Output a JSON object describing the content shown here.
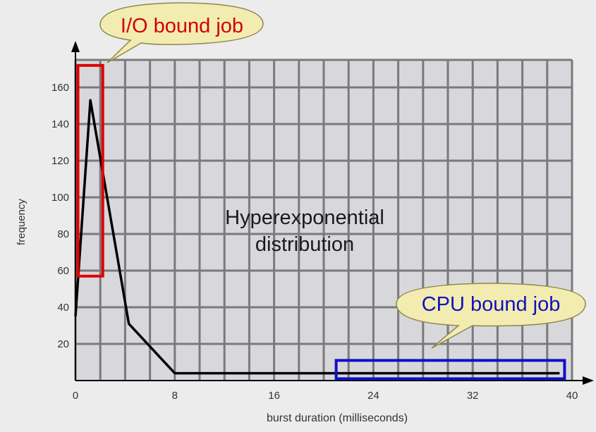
{
  "chart_data": {
    "type": "line",
    "xlabel": "burst duration (milliseconds)",
    "ylabel": "frequency",
    "xlim": [
      0,
      40
    ],
    "ylim": [
      0,
      175
    ],
    "x_ticks": [
      0,
      8,
      16,
      24,
      32,
      40
    ],
    "y_ticks": [
      20,
      40,
      60,
      80,
      100,
      120,
      140,
      160
    ],
    "grid_x": [
      0,
      2,
      4,
      6,
      8,
      10,
      12,
      14,
      16,
      18,
      20,
      22,
      24,
      26,
      28,
      30,
      32,
      34,
      36,
      38,
      40
    ],
    "grid_on": true,
    "series": [
      {
        "x": [
          0,
          1.2,
          4.3,
          8,
          39
        ],
        "y": [
          35,
          153,
          31,
          4,
          4
        ]
      }
    ],
    "annotations": {
      "center_text": [
        "Hyperexponential",
        "distribution"
      ],
      "io_callout": "I/O bound job",
      "cpu_callout": "CPU bound job"
    },
    "io_box_range": {
      "x": [
        0.2,
        2.2
      ],
      "y": [
        57,
        172
      ]
    },
    "cpu_box_range": {
      "x": [
        21,
        39.4
      ],
      "y": [
        1,
        11
      ]
    },
    "colors": {
      "plot_bg": "#d8d8dc",
      "grid": "#7a7a7a",
      "line": "#000000",
      "io_box": "#e00000",
      "cpu_box": "#1010c8",
      "io_text": "#d40000",
      "cpu_text": "#1010c0",
      "callout_fill": "#f2ecb0",
      "callout_stroke": "#8c8650"
    }
  }
}
